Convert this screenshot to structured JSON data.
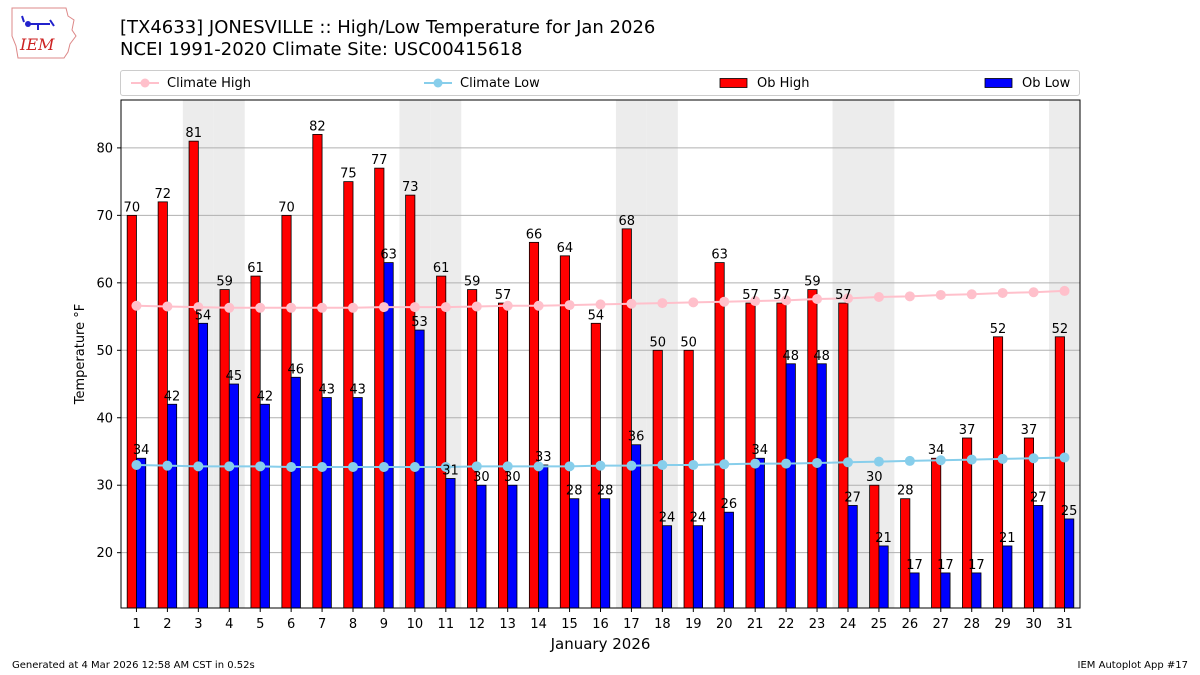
{
  "header": {
    "title_line1": "[TX4633] JONESVILLE :: High/Low Temperature for Jan 2026",
    "title_line2": "NCEI 1991-2020 Climate Site: USC00415618",
    "logo_text": "IEM"
  },
  "legend": [
    {
      "label": "Climate High",
      "kind": "line",
      "color": "#ffc0cb"
    },
    {
      "label": "Climate Low",
      "kind": "line",
      "color": "#87ceeb"
    },
    {
      "label": "Ob High",
      "kind": "bar",
      "color": "#ff0000"
    },
    {
      "label": "Ob Low",
      "kind": "bar",
      "color": "#0000ff"
    }
  ],
  "footer": {
    "left": "Generated at 4 Mar 2026 12:58 AM CST in 0.52s",
    "right": "IEM Autoplot App #17"
  },
  "chart_data": {
    "type": "bar",
    "title": "[TX4633] JONESVILLE :: High/Low Temperature for Jan 2026",
    "subtitle": "NCEI 1991-2020 Climate Site: USC00415618",
    "xlabel": "January 2026",
    "ylabel": "Temperature °F",
    "ylim": [
      11.8,
      87.1
    ],
    "yticks": [
      20,
      30,
      40,
      50,
      60,
      70,
      80
    ],
    "grid": true,
    "legend_position": "top",
    "weekend_shaded_days": [
      3,
      4,
      10,
      11,
      17,
      18,
      24,
      25,
      31
    ],
    "categories": [
      1,
      2,
      3,
      4,
      5,
      6,
      7,
      8,
      9,
      10,
      11,
      12,
      13,
      14,
      15,
      16,
      17,
      18,
      19,
      20,
      21,
      22,
      23,
      24,
      25,
      26,
      27,
      28,
      29,
      30,
      31
    ],
    "series": [
      {
        "name": "Ob High",
        "type": "bar",
        "color": "#ff0000",
        "values": [
          70,
          72,
          81,
          59,
          61,
          70,
          82,
          75,
          77,
          73,
          61,
          59,
          57,
          66,
          64,
          54,
          68,
          50,
          50,
          63,
          57,
          57,
          59,
          57,
          30,
          28,
          34,
          37,
          52,
          37,
          52
        ]
      },
      {
        "name": "Ob Low",
        "type": "bar",
        "color": "#0000ff",
        "values": [
          34,
          42,
          54,
          45,
          42,
          46,
          43,
          43,
          63,
          53,
          31,
          30,
          30,
          33,
          28,
          28,
          36,
          24,
          24,
          26,
          34,
          48,
          48,
          27,
          21,
          17,
          17,
          17,
          21,
          27,
          25
        ]
      },
      {
        "name": "Climate High",
        "type": "line",
        "color": "#ffc0cb",
        "values": [
          56.6,
          56.5,
          56.4,
          56.3,
          56.3,
          56.3,
          56.3,
          56.3,
          56.4,
          56.4,
          56.4,
          56.5,
          56.6,
          56.6,
          56.7,
          56.8,
          56.9,
          57.0,
          57.1,
          57.2,
          57.3,
          57.4,
          57.6,
          57.7,
          57.9,
          58.0,
          58.2,
          58.3,
          58.5,
          58.6,
          58.8
        ]
      },
      {
        "name": "Climate Low",
        "type": "line",
        "color": "#87ceeb",
        "values": [
          33.0,
          32.9,
          32.8,
          32.8,
          32.8,
          32.7,
          32.7,
          32.7,
          32.7,
          32.7,
          32.7,
          32.8,
          32.8,
          32.8,
          32.8,
          32.9,
          32.9,
          33.0,
          33.0,
          33.1,
          33.2,
          33.2,
          33.3,
          33.4,
          33.5,
          33.6,
          33.7,
          33.8,
          33.9,
          34.0,
          34.1
        ]
      }
    ]
  }
}
